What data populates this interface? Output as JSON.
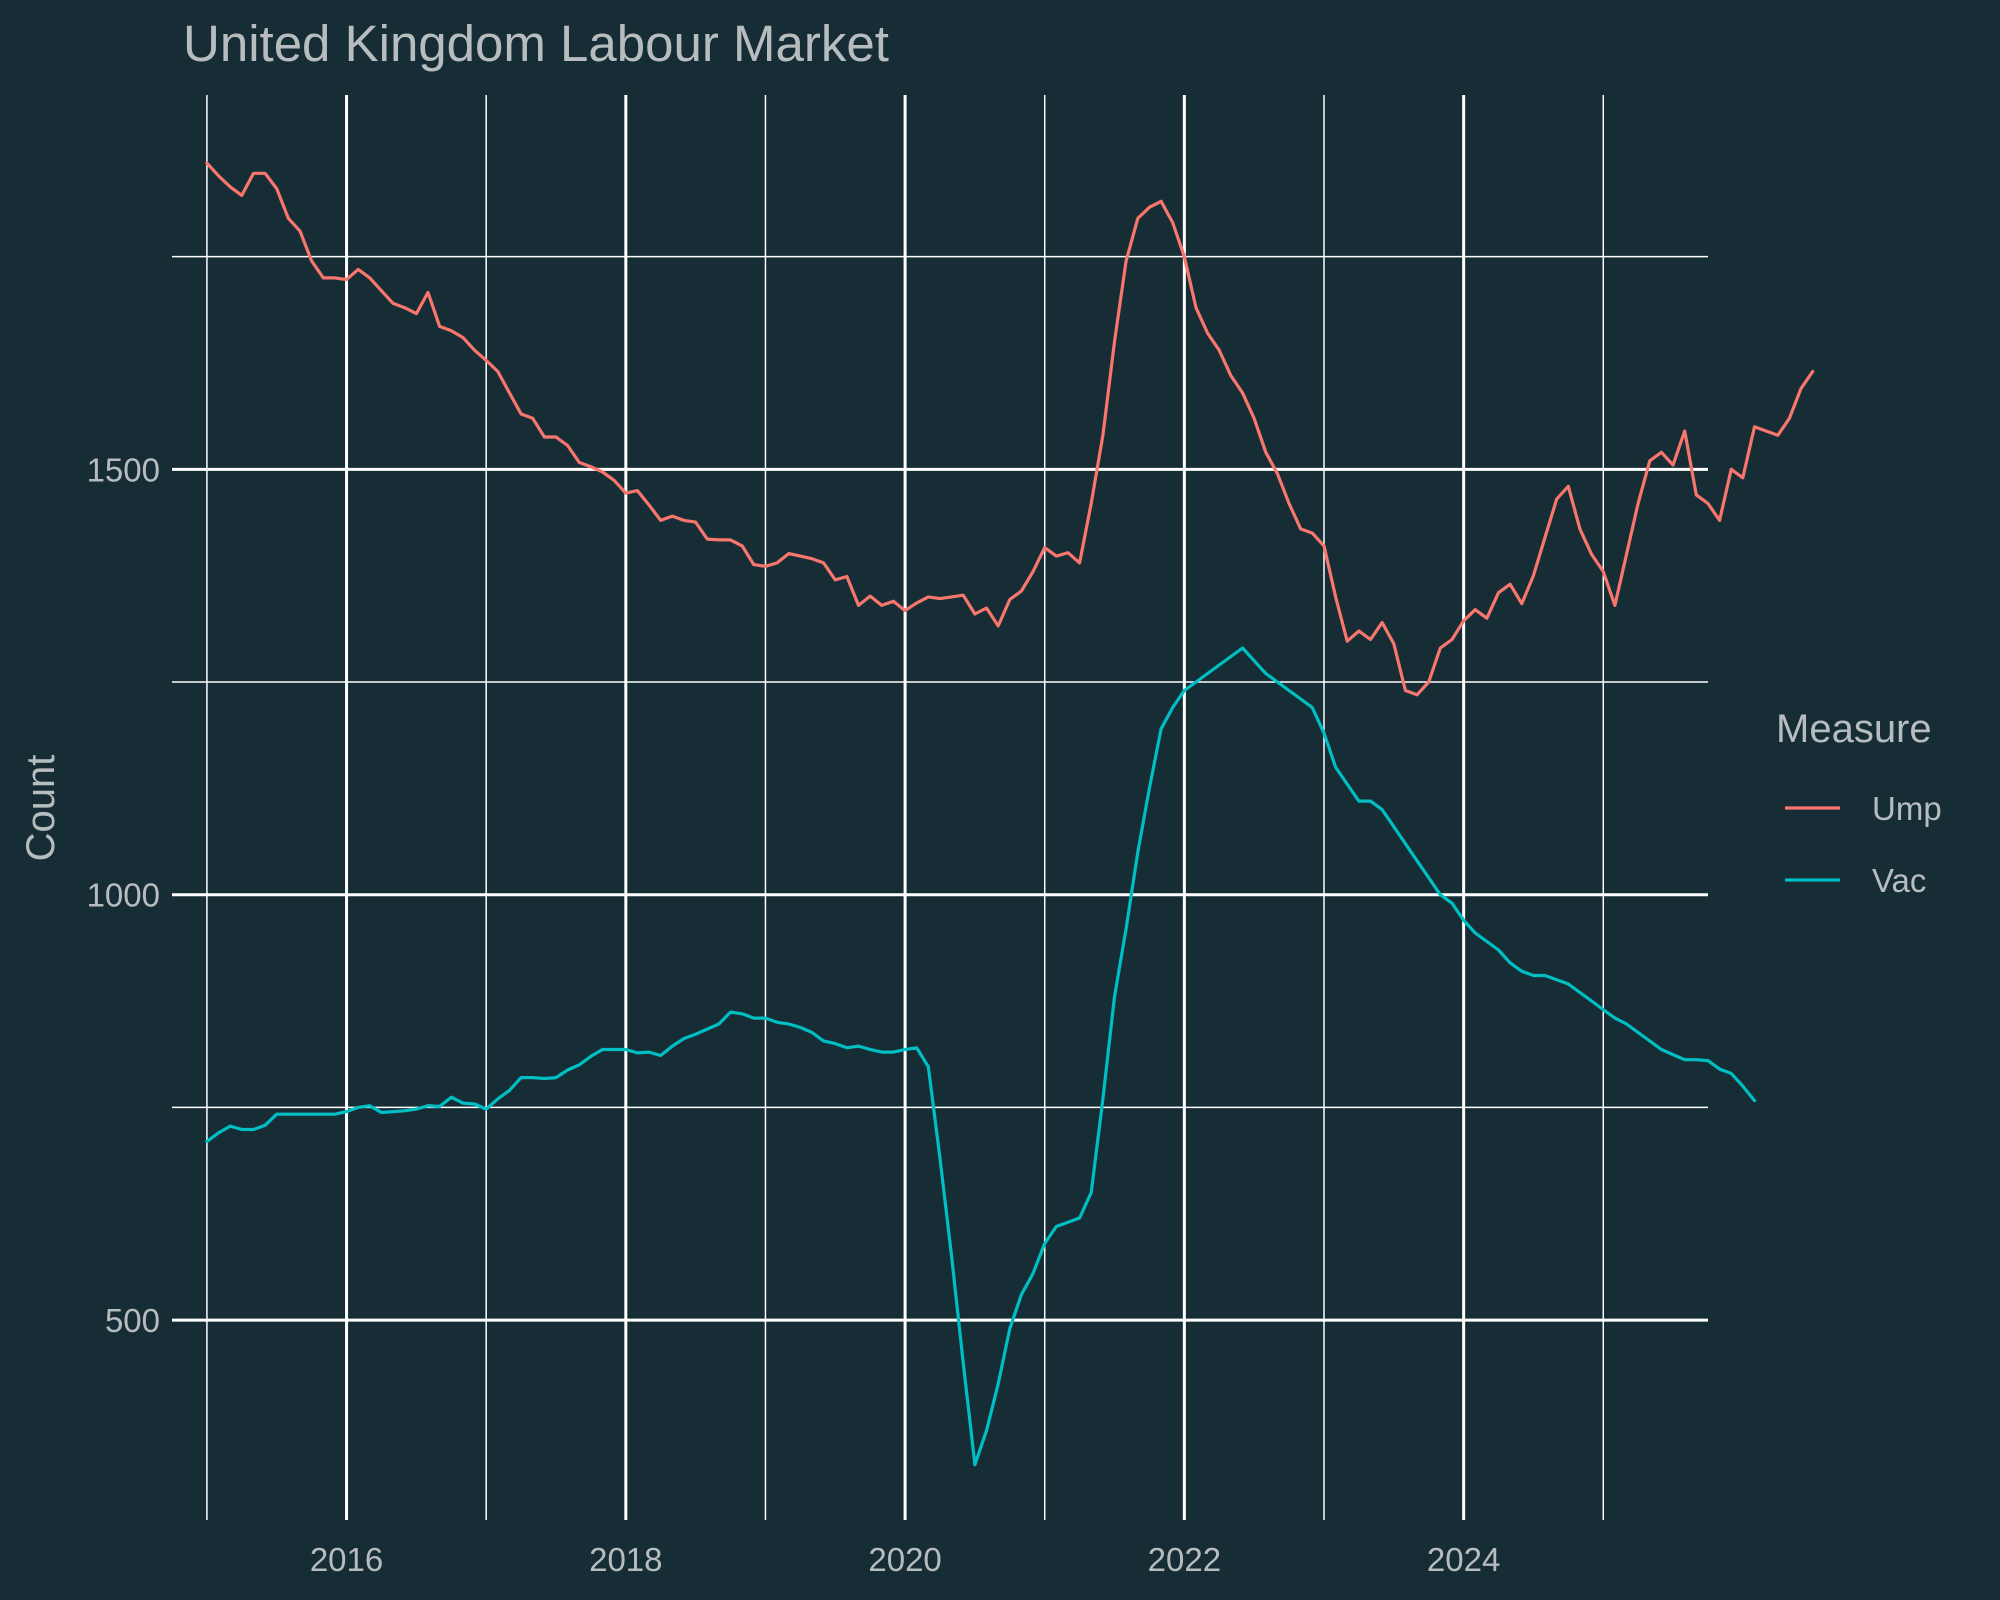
{
  "chart_data": {
    "type": "line",
    "title": "United Kingdom Labour Market",
    "xlabel": "",
    "ylabel": "Count",
    "x_ticks": [
      "2016",
      "2018",
      "2020",
      "2022",
      "2024"
    ],
    "y_ticks": [
      "500",
      "1000",
      "1500"
    ],
    "xlim": [
      2014.75,
      2025.75
    ],
    "ylim": [
      265,
      1940
    ],
    "grid": true,
    "legend": {
      "title": "Measure",
      "position": "right"
    },
    "x_start": 2015.0,
    "x_step": 0.08333,
    "series": [
      {
        "name": "Ump",
        "color": "#f8766d",
        "values": [
          1860,
          1845,
          1832,
          1822,
          1848,
          1848,
          1830,
          1795,
          1780,
          1745,
          1725,
          1725,
          1723,
          1735,
          1725,
          1710,
          1695,
          1690,
          1683,
          1708,
          1668,
          1663,
          1655,
          1640,
          1628,
          1615,
          1590,
          1565,
          1560,
          1538,
          1538,
          1528,
          1508,
          1503,
          1497,
          1487,
          1472,
          1475,
          1458,
          1440,
          1445,
          1440,
          1438,
          1418,
          1417,
          1417,
          1410,
          1388,
          1386,
          1390,
          1401,
          1398,
          1395,
          1390,
          1370,
          1374,
          1340,
          1351,
          1340,
          1345,
          1334,
          1343,
          1350,
          1348,
          1350,
          1352,
          1330,
          1337,
          1316,
          1347,
          1357,
          1380,
          1408,
          1398,
          1402,
          1390,
          1460,
          1540,
          1650,
          1745,
          1795,
          1808,
          1815,
          1790,
          1750,
          1690,
          1660,
          1640,
          1610,
          1590,
          1560,
          1520,
          1495,
          1460,
          1430,
          1425,
          1410,
          1350,
          1298,
          1310,
          1300,
          1320,
          1295,
          1240,
          1235,
          1250,
          1290,
          1300,
          1322,
          1335,
          1325,
          1355,
          1365,
          1342,
          1375,
          1420,
          1465,
          1480,
          1430,
          1400,
          1380,
          1340,
          1400,
          1460,
          1510,
          1520,
          1505,
          1545,
          1470,
          1460,
          1440,
          1500,
          1490,
          1550,
          1545,
          1540,
          1560,
          1595,
          1615
        ]
      },
      {
        "name": "Vac",
        "color": "#00bfc4",
        "values": [
          710,
          720,
          728,
          724,
          724,
          729,
          742,
          742,
          742,
          742,
          742,
          742,
          745,
          750,
          752,
          744,
          745,
          746,
          748,
          752,
          751,
          762,
          755,
          754,
          748,
          760,
          770,
          785,
          785,
          784,
          785,
          794,
          800,
          810,
          818,
          818,
          818,
          814,
          815,
          811,
          822,
          831,
          836,
          842,
          848,
          862,
          860,
          855,
          855,
          850,
          848,
          844,
          838,
          828,
          825,
          820,
          822,
          818,
          815,
          815,
          818,
          820,
          798,
          690,
          575,
          450,
          330,
          370,
          425,
          490,
          530,
          555,
          590,
          610,
          615,
          620,
          650,
          760,
          880,
          960,
          1050,
          1125,
          1195,
          1220,
          1240,
          1250,
          1260,
          1270,
          1280,
          1290,
          1275,
          1260,
          1250,
          1240,
          1230,
          1220,
          1190,
          1150,
          1130,
          1110,
          1110,
          1100,
          1080,
          1060,
          1040,
          1020,
          1000,
          990,
          970,
          955,
          945,
          935,
          920,
          910,
          905,
          905,
          900,
          895,
          885,
          875,
          865,
          855,
          848,
          838,
          828,
          818,
          812,
          806,
          806,
          805,
          795,
          790,
          775,
          758
        ]
      }
    ]
  }
}
